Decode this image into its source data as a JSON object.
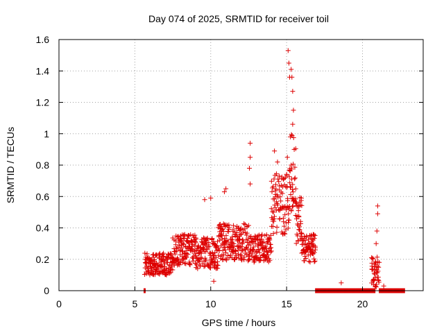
{
  "chart_data": {
    "type": "scatter",
    "title": "Day 074 of 2025, SRMTID for receiver toil",
    "xlabel": "GPS time / hours",
    "ylabel": "SRMTID / TECUs",
    "xlim": [
      0,
      24
    ],
    "ylim": [
      0,
      1.6
    ],
    "xticks": [
      0,
      5,
      10,
      15,
      20
    ],
    "yticks": [
      0,
      0.2,
      0.4,
      0.6,
      0.8,
      1,
      1.2,
      1.4,
      1.6
    ],
    "xtick_labels": [
      "0",
      "5",
      "10",
      "15",
      "20"
    ],
    "ytick_labels": [
      "0",
      "0.2",
      "0.4",
      "0.6",
      "0.8",
      "1",
      "1.2",
      "1.4",
      "1.6"
    ],
    "grid": true,
    "marker": "plus",
    "color": "#dd0000",
    "series": [
      {
        "name": "SRMTID",
        "segments": [
          {
            "t_start": 5.6,
            "t_end": 5.72,
            "mean": 0.0,
            "amplitude": 0.0
          },
          {
            "t_start": 5.65,
            "t_end": 7.5,
            "mean": 0.17,
            "amplitude": 0.07
          },
          {
            "t_start": 7.5,
            "t_end": 9.0,
            "mean": 0.26,
            "amplitude": 0.1
          },
          {
            "t_start": 9.0,
            "t_end": 10.5,
            "mean": 0.24,
            "amplitude": 0.1
          },
          {
            "t_start": 10.5,
            "t_end": 12.5,
            "mean": 0.31,
            "amplitude": 0.12
          },
          {
            "t_start": 12.5,
            "t_end": 14.0,
            "mean": 0.27,
            "amplitude": 0.09
          },
          {
            "t_start": 14.0,
            "t_end": 15.2,
            "mean": 0.55,
            "amplitude": 0.2
          },
          {
            "t_start": 15.2,
            "t_end": 15.6,
            "mean": 0.75,
            "amplitude": 0.25
          },
          {
            "t_start": 15.6,
            "t_end": 16.0,
            "mean": 0.45,
            "amplitude": 0.15
          },
          {
            "t_start": 16.0,
            "t_end": 16.9,
            "mean": 0.27,
            "amplitude": 0.09
          },
          {
            "t_start": 16.9,
            "t_end": 20.85,
            "mean": 0.0,
            "amplitude": 0.0
          },
          {
            "t_start": 20.6,
            "t_end": 21.1,
            "mean": 0.12,
            "amplitude": 0.1
          },
          {
            "t_start": 21.1,
            "t_end": 22.8,
            "mean": 0.0,
            "amplitude": 0.0
          }
        ],
        "highlights": [
          {
            "x": 15.1,
            "y": 1.53
          },
          {
            "x": 15.15,
            "y": 1.45
          },
          {
            "x": 15.3,
            "y": 1.41
          },
          {
            "x": 15.2,
            "y": 1.36
          },
          {
            "x": 15.35,
            "y": 1.36
          },
          {
            "x": 15.4,
            "y": 1.27
          },
          {
            "x": 15.45,
            "y": 1.15
          },
          {
            "x": 15.4,
            "y": 1.06
          },
          {
            "x": 15.25,
            "y": 0.98
          },
          {
            "x": 15.5,
            "y": 0.9
          },
          {
            "x": 15.05,
            "y": 0.85
          },
          {
            "x": 15.3,
            "y": 0.8
          },
          {
            "x": 12.6,
            "y": 0.94
          },
          {
            "x": 12.6,
            "y": 0.85
          },
          {
            "x": 12.55,
            "y": 0.78
          },
          {
            "x": 12.6,
            "y": 0.68
          },
          {
            "x": 14.2,
            "y": 0.89
          },
          {
            "x": 14.4,
            "y": 0.82
          },
          {
            "x": 10.9,
            "y": 0.63
          },
          {
            "x": 11.0,
            "y": 0.65
          },
          {
            "x": 9.6,
            "y": 0.58
          },
          {
            "x": 10.0,
            "y": 0.59
          },
          {
            "x": 21.0,
            "y": 0.54
          },
          {
            "x": 21.0,
            "y": 0.49
          },
          {
            "x": 20.95,
            "y": 0.38
          },
          {
            "x": 20.9,
            "y": 0.3
          },
          {
            "x": 18.6,
            "y": 0.05
          },
          {
            "x": 10.2,
            "y": 0.06
          },
          {
            "x": 21.4,
            "y": 0.03
          }
        ]
      }
    ]
  }
}
